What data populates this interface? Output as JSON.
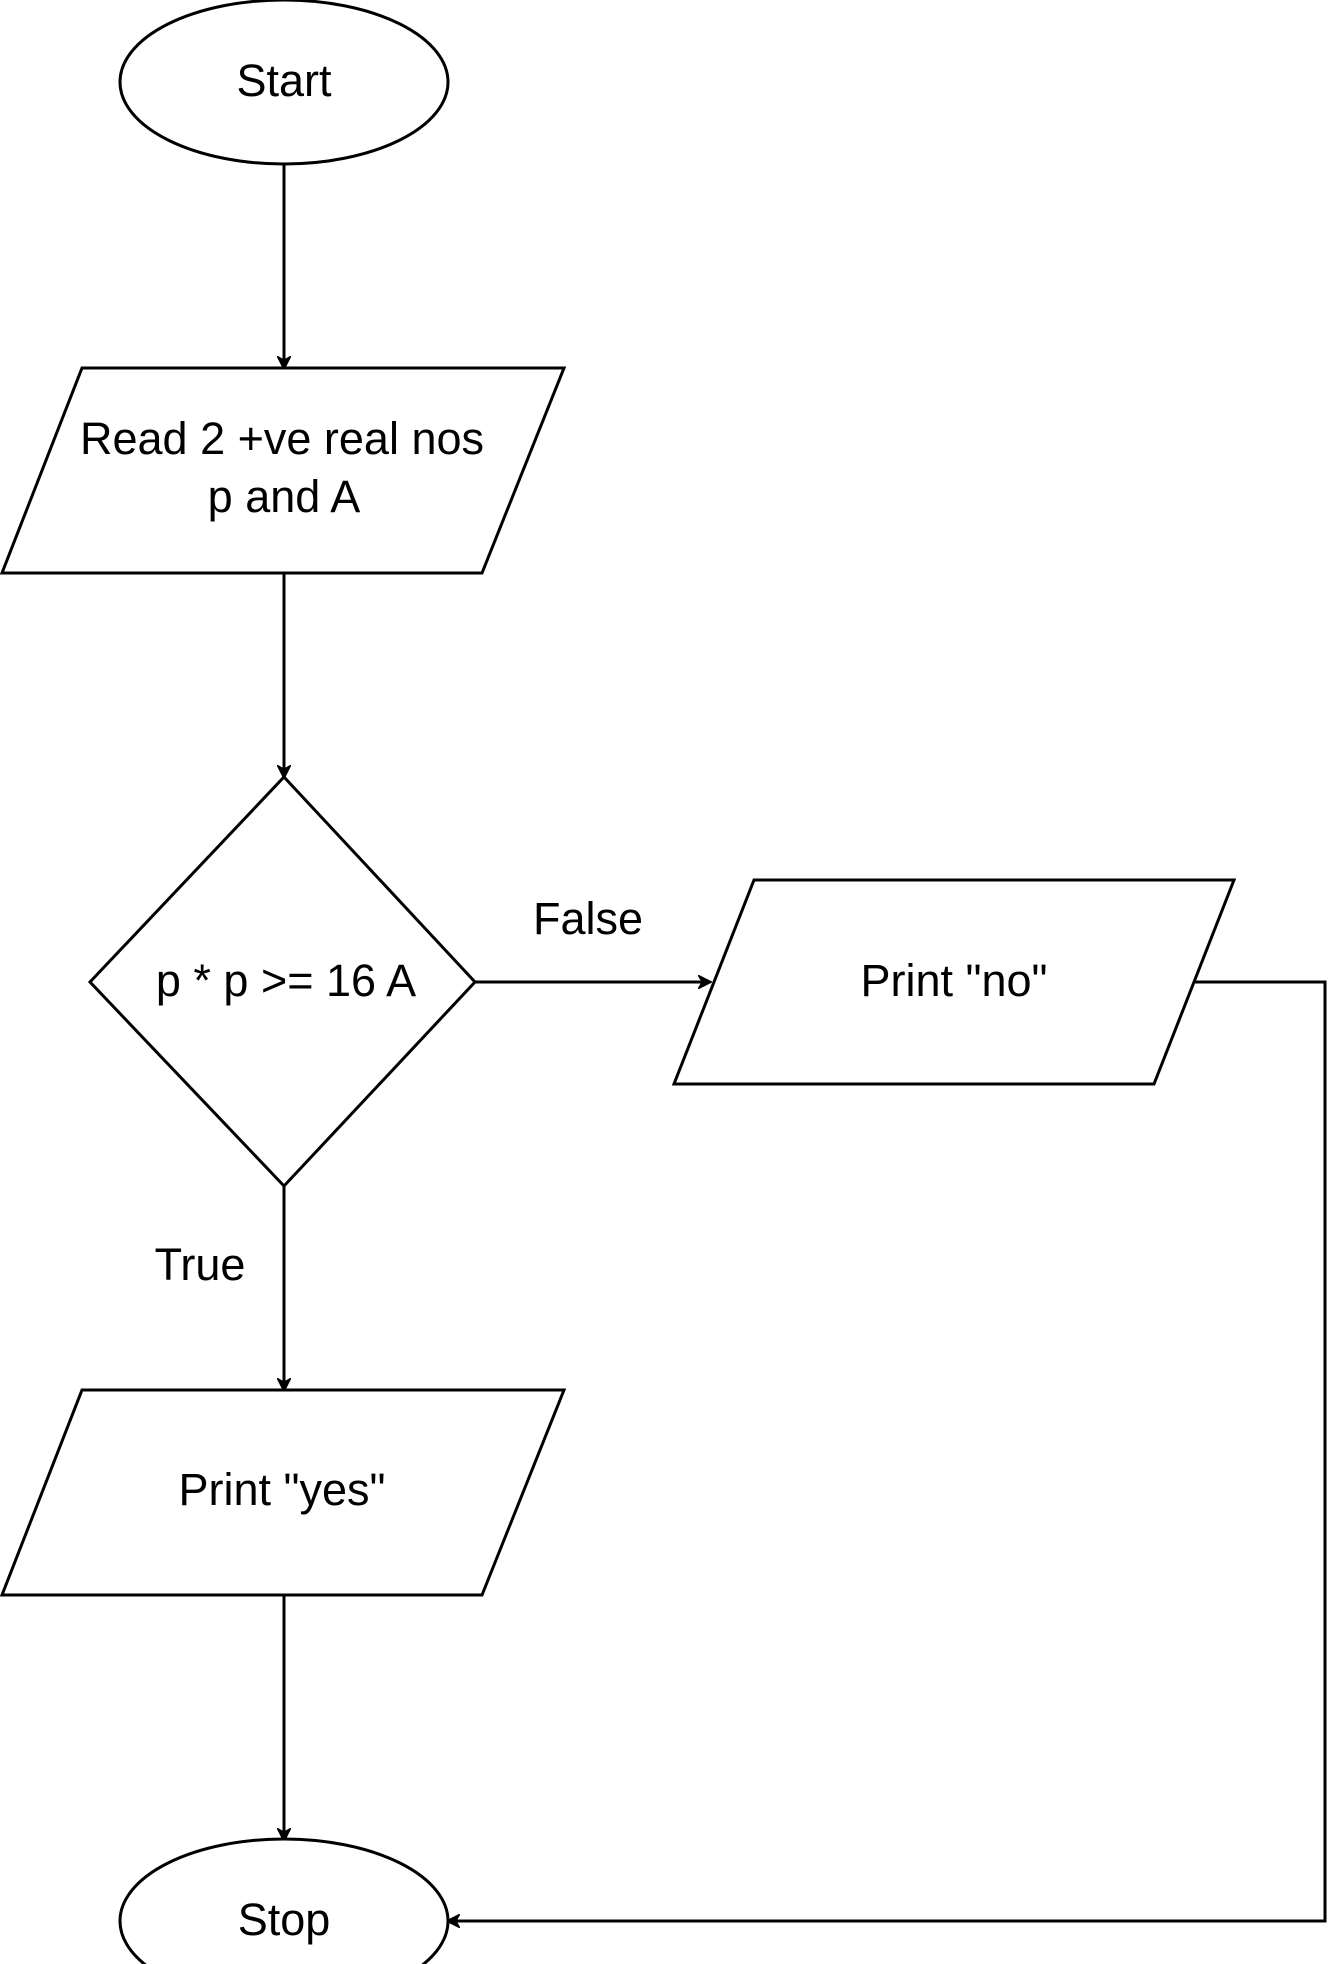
{
  "diagram": {
    "type": "flowchart",
    "nodes": {
      "start": {
        "shape": "terminator",
        "label": "Start"
      },
      "read_input": {
        "shape": "input-output",
        "label_line1": "Read 2 +ve real nos",
        "label_line2": "p and A"
      },
      "decision": {
        "shape": "decision",
        "label": "p * p >= 16 A"
      },
      "print_no": {
        "shape": "input-output",
        "label": "Print \"no\""
      },
      "print_yes": {
        "shape": "input-output",
        "label": "Print \"yes\""
      },
      "stop": {
        "shape": "terminator",
        "label": "Stop"
      }
    },
    "edges": [
      {
        "from": "start",
        "to": "read_input",
        "label": ""
      },
      {
        "from": "read_input",
        "to": "decision",
        "label": ""
      },
      {
        "from": "decision",
        "to": "print_no",
        "label": "False"
      },
      {
        "from": "decision",
        "to": "print_yes",
        "label": "True"
      },
      {
        "from": "print_yes",
        "to": "stop",
        "label": ""
      },
      {
        "from": "print_no",
        "to": "stop",
        "label": ""
      }
    ],
    "edge_labels": {
      "false_branch": "False",
      "true_branch": "True"
    }
  }
}
